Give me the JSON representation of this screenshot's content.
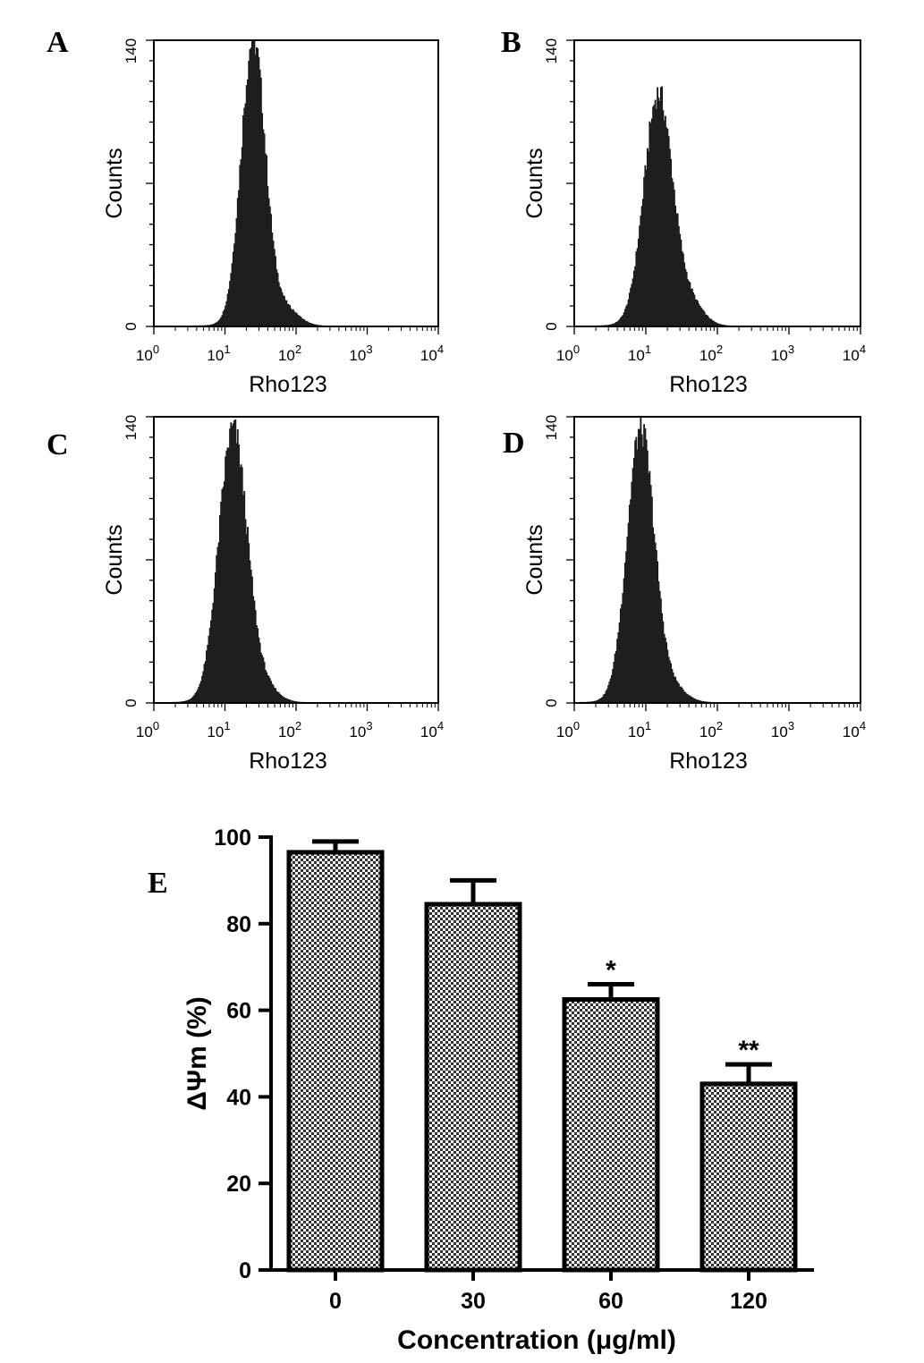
{
  "chart_data": [
    {
      "panel": "A",
      "type": "histogram",
      "xlabel": "Rho123",
      "ylabel": "Counts",
      "x_scale": "log",
      "xlim": [
        1,
        10000
      ],
      "ylim": [
        0,
        140
      ],
      "x_ticks": [
        {
          "base": "10",
          "exp": "0"
        },
        {
          "base": "10",
          "exp": "1"
        },
        {
          "base": "10",
          "exp": "2"
        },
        {
          "base": "10",
          "exp": "3"
        },
        {
          "base": "10",
          "exp": "4"
        }
      ],
      "y_ticks": [
        "0",
        "140"
      ],
      "peak_x": 25,
      "peak_count": 140,
      "spread": 0.17,
      "right_tail": 0.06
    },
    {
      "panel": "B",
      "type": "histogram",
      "xlabel": "Rho123",
      "ylabel": "Counts",
      "x_scale": "log",
      "xlim": [
        1,
        10000
      ],
      "ylim": [
        0,
        140
      ],
      "x_ticks": [
        {
          "base": "10",
          "exp": "0"
        },
        {
          "base": "10",
          "exp": "1"
        },
        {
          "base": "10",
          "exp": "2"
        },
        {
          "base": "10",
          "exp": "3"
        },
        {
          "base": "10",
          "exp": "4"
        }
      ],
      "y_ticks": [
        "0",
        "140"
      ],
      "peak_x": 15,
      "peak_count": 113,
      "spread": 0.2,
      "right_tail": 0.09
    },
    {
      "panel": "C",
      "type": "histogram",
      "xlabel": "Rho123",
      "ylabel": "Counts",
      "x_scale": "log",
      "xlim": [
        1,
        10000
      ],
      "ylim": [
        0,
        140
      ],
      "x_ticks": [
        {
          "base": "10",
          "exp": "0"
        },
        {
          "base": "10",
          "exp": "1"
        },
        {
          "base": "10",
          "exp": "2"
        },
        {
          "base": "10",
          "exp": "3"
        },
        {
          "base": "10",
          "exp": "4"
        }
      ],
      "y_ticks": [
        "0",
        "140"
      ],
      "peak_x": 13,
      "peak_count": 133,
      "spread": 0.2,
      "right_tail": 0.05
    },
    {
      "panel": "D",
      "type": "histogram",
      "xlabel": "Rho123",
      "ylabel": "Counts",
      "x_scale": "log",
      "xlim": [
        1,
        10000
      ],
      "ylim": [
        0,
        140
      ],
      "x_ticks": [
        {
          "base": "10",
          "exp": "0"
        },
        {
          "base": "10",
          "exp": "1"
        },
        {
          "base": "10",
          "exp": "2"
        },
        {
          "base": "10",
          "exp": "3"
        },
        {
          "base": "10",
          "exp": "4"
        }
      ],
      "y_ticks": [
        "0",
        "140"
      ],
      "peak_x": 8.5,
      "peak_count": 133,
      "spread": 0.19,
      "right_tail": 0.05
    },
    {
      "panel": "E",
      "type": "bar",
      "xlabel": "Concentration (μg/ml)",
      "ylabel": "ΔΨm (%)",
      "categories": [
        "0",
        "30",
        "60",
        "120"
      ],
      "values": [
        96.5,
        84.5,
        62.5,
        43
      ],
      "errors": [
        2.5,
        5.5,
        3.5,
        4.5
      ],
      "significance": [
        "",
        "",
        "*",
        "**"
      ],
      "ylim": [
        0,
        100
      ],
      "y_ticks": [
        "0",
        "20",
        "40",
        "60",
        "80",
        "100"
      ],
      "bar_pattern": "checkered"
    }
  ]
}
